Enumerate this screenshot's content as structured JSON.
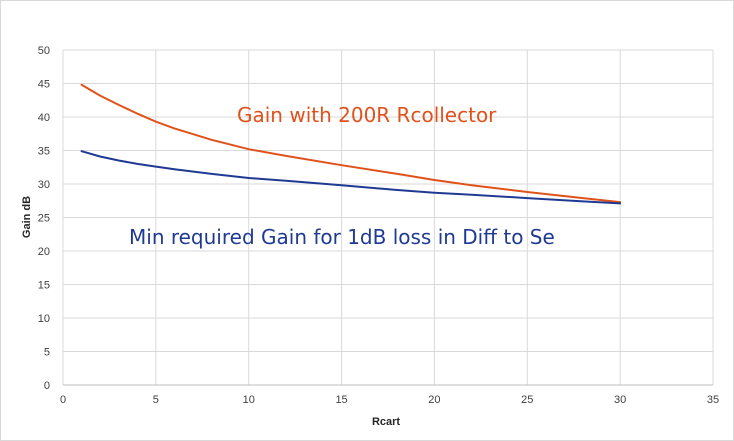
{
  "chart_data": {
    "type": "line",
    "xlabel": "Rcart",
    "ylabel": "Gain dB",
    "xlim": [
      0,
      35
    ],
    "ylim": [
      0,
      50
    ],
    "xticks": [
      0,
      5,
      10,
      15,
      20,
      25,
      30,
      35
    ],
    "yticks": [
      0,
      5,
      10,
      15,
      20,
      25,
      30,
      35,
      40,
      45,
      50
    ],
    "grid": true,
    "legend": "none",
    "series": [
      {
        "annotation": "Gain with 200R Rcollector",
        "color": "#e0521b",
        "x": [
          1,
          2,
          3,
          4,
          5,
          6,
          8,
          10,
          12,
          15,
          18,
          20,
          22,
          25,
          28,
          30
        ],
        "y": [
          44.8,
          43.2,
          41.8,
          40.5,
          39.3,
          38.3,
          36.6,
          35.2,
          34.2,
          32.8,
          31.5,
          30.6,
          29.8,
          28.8,
          27.9,
          27.3
        ]
      },
      {
        "annotation": "Min required Gain for 1dB loss in Diff to Se",
        "color": "#1f3a93",
        "x": [
          1,
          2,
          3,
          4,
          5,
          6,
          8,
          10,
          12,
          15,
          18,
          20,
          22,
          25,
          28,
          30
        ],
        "y": [
          34.9,
          34.1,
          33.5,
          33.0,
          32.6,
          32.2,
          31.5,
          30.9,
          30.5,
          29.8,
          29.1,
          28.7,
          28.4,
          27.9,
          27.4,
          27.1
        ]
      }
    ]
  }
}
